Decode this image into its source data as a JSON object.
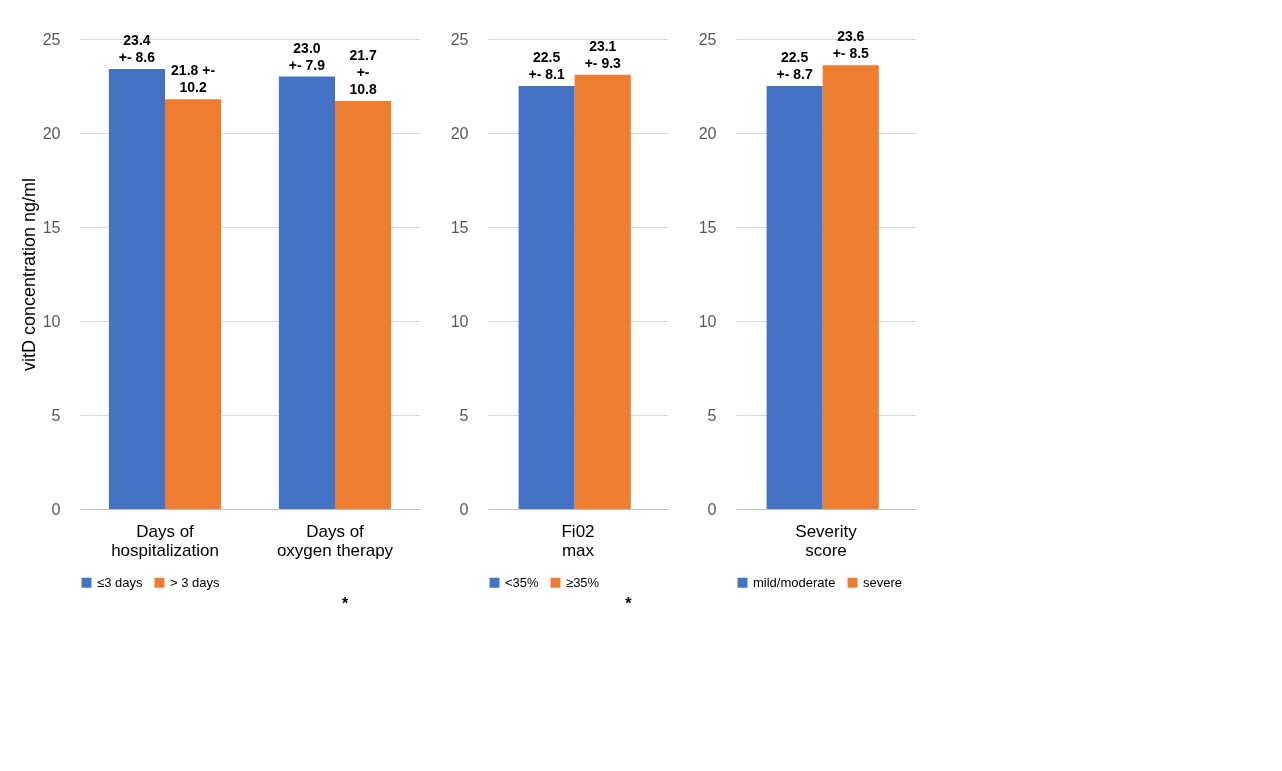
{
  "chart_data": [
    {
      "type": "bar",
      "ylabel": "vitD concentration  ng/ml",
      "categories": [
        "Days of\nhospitalization",
        "Days of\noxygen therapy"
      ],
      "series": [
        {
          "name": "≤3 days",
          "color": "#4472c4",
          "values": [
            23.4,
            23.0
          ],
          "value_labels": [
            "23.4\n+- 8.6",
            "23.0\n+- 7.9"
          ]
        },
        {
          "name": "> 3 days",
          "color": "#ed7d31",
          "values": [
            21.8,
            21.7
          ],
          "value_labels": [
            "21.8 +-\n10.2",
            "21.7\n+-\n10.8"
          ]
        }
      ],
      "ylim": [
        0,
        25
      ],
      "yticks": [
        0,
        5,
        10,
        15,
        20,
        25
      ],
      "grid": "y",
      "legend": "bottom",
      "annotations": [
        "*"
      ]
    },
    {
      "type": "bar",
      "categories": [
        "Fi02\nmax"
      ],
      "series": [
        {
          "name": "<35%",
          "color": "#4472c4",
          "values": [
            22.5
          ],
          "value_labels": [
            "22.5\n+- 8.1"
          ]
        },
        {
          "name": "≥35%",
          "color": "#ed7d31",
          "values": [
            23.1
          ],
          "value_labels": [
            "23.1\n+- 9.3"
          ]
        }
      ],
      "ylim": [
        0,
        25
      ],
      "yticks": [
        0,
        5,
        10,
        15,
        20,
        25
      ],
      "grid": "y",
      "legend": "bottom",
      "annotations": [
        "*"
      ]
    },
    {
      "type": "bar",
      "categories": [
        "Severity\nscore"
      ],
      "series": [
        {
          "name": "mild/moderate",
          "color": "#4472c4",
          "values": [
            22.5
          ],
          "value_labels": [
            "22.5\n+- 8.7"
          ]
        },
        {
          "name": "severe",
          "color": "#ed7d31",
          "values": [
            23.6
          ],
          "value_labels": [
            "23.6\n+- 8.5"
          ]
        }
      ],
      "ylim": [
        0,
        25
      ],
      "yticks": [
        0,
        5,
        10,
        15,
        20,
        25
      ],
      "grid": "y",
      "legend": "bottom"
    }
  ]
}
